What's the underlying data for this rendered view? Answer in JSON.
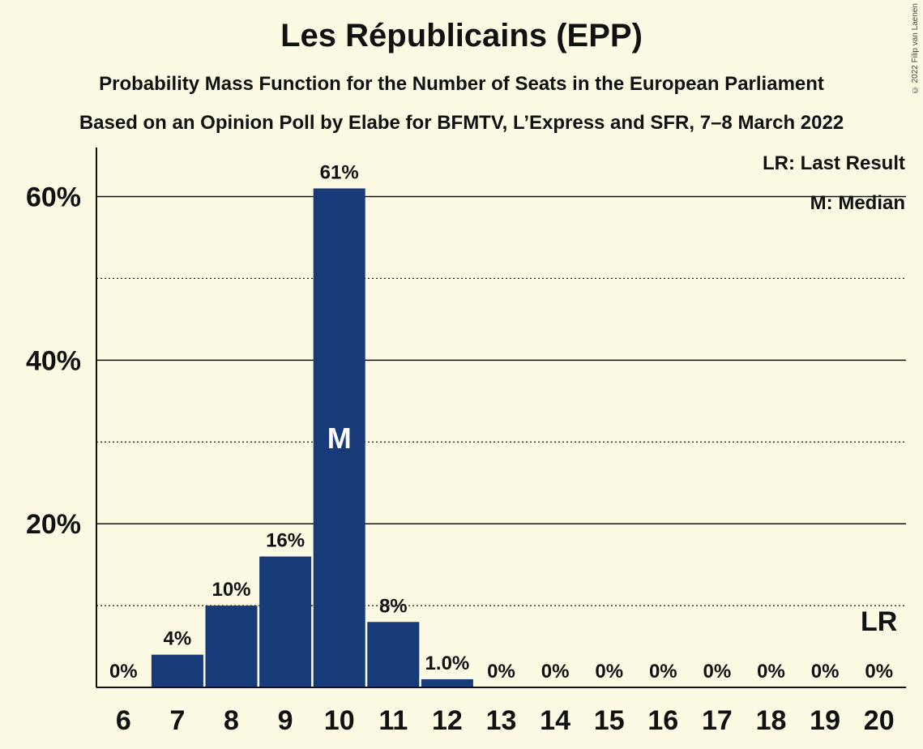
{
  "header": {
    "title": "Les Républicains (EPP)",
    "subtitle1": "Probability Mass Function for the Number of Seats in the European Parliament",
    "subtitle2": "Based on an Opinion Poll by Elabe for BFMTV, L’Express and SFR, 7–8 March 2022",
    "copyright": "© 2022 Filip van Laenen"
  },
  "legend": {
    "last_result": "LR: Last Result",
    "median": "M: Median"
  },
  "markers": {
    "median_label": "M",
    "median_seat": 10,
    "last_result_label": "LR",
    "last_result_seat": 20
  },
  "colors": {
    "background": "#fdfae4",
    "bar": "#173a78",
    "grid": "#111111"
  },
  "chart_data": {
    "type": "bar",
    "title": "Les Républicains (EPP)",
    "xlabel": "",
    "ylabel": "",
    "categories": [
      "6",
      "7",
      "8",
      "9",
      "10",
      "11",
      "12",
      "13",
      "14",
      "15",
      "16",
      "17",
      "18",
      "19",
      "20"
    ],
    "values": [
      0,
      4,
      10,
      16,
      61,
      8,
      1.0,
      0,
      0,
      0,
      0,
      0,
      0,
      0,
      0
    ],
    "value_labels": [
      "0%",
      "4%",
      "10%",
      "16%",
      "61%",
      "8%",
      "1.0%",
      "0%",
      "0%",
      "0%",
      "0%",
      "0%",
      "0%",
      "0%",
      "0%"
    ],
    "ylim": [
      0,
      66
    ],
    "yticks": [
      20,
      40,
      60
    ],
    "ytick_labels": [
      "20%",
      "40%",
      "60%"
    ],
    "minor_gridlines": [
      10,
      30,
      50
    ],
    "grid": true
  }
}
